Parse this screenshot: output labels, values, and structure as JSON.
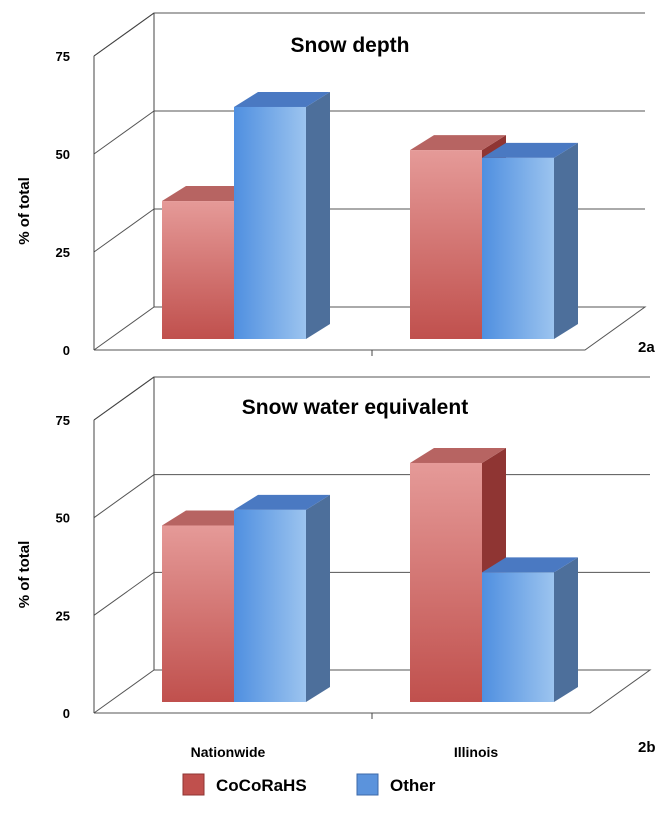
{
  "chart_data": [
    {
      "type": "bar",
      "title": "Snow depth",
      "panel_label": "2a",
      "ylabel": "% of total",
      "ylim": [
        0,
        75
      ],
      "yticks": [
        "0",
        "25",
        "50",
        "75"
      ],
      "categories": [
        "Nationwide",
        "Illinois"
      ],
      "show_category_labels": false,
      "series": [
        {
          "name": "CoCoRaHS",
          "values": [
            38,
            51
          ]
        },
        {
          "name": "Other",
          "values": [
            62,
            49
          ]
        }
      ]
    },
    {
      "type": "bar",
      "title": "Snow water equivalent",
      "panel_label": "2b",
      "ylabel": "% of total",
      "ylim": [
        0,
        75
      ],
      "yticks": [
        "0",
        "25",
        "50",
        "75"
      ],
      "categories": [
        "Nationwide",
        "Illinois"
      ],
      "show_category_labels": true,
      "series": [
        {
          "name": "CoCoRaHS",
          "values": [
            48,
            64
          ]
        },
        {
          "name": "Other",
          "values": [
            52,
            36
          ]
        }
      ]
    }
  ],
  "legend": [
    {
      "label": "CoCoRaHS",
      "color": "#c0504d"
    },
    {
      "label": "Other",
      "color": "#4f81bd"
    }
  ],
  "colors": {
    "cocorahs_front_top": "#e59a98",
    "cocorahs_front_bottom": "#c0504d",
    "cocorahs_side": "#8f3533",
    "cocorahs_top": "#b76462",
    "other_front_left": "#4f8fe0",
    "other_front_right": "#9cc4ef",
    "other_side": "#4d6f9b",
    "other_top": "#4a79c2"
  }
}
